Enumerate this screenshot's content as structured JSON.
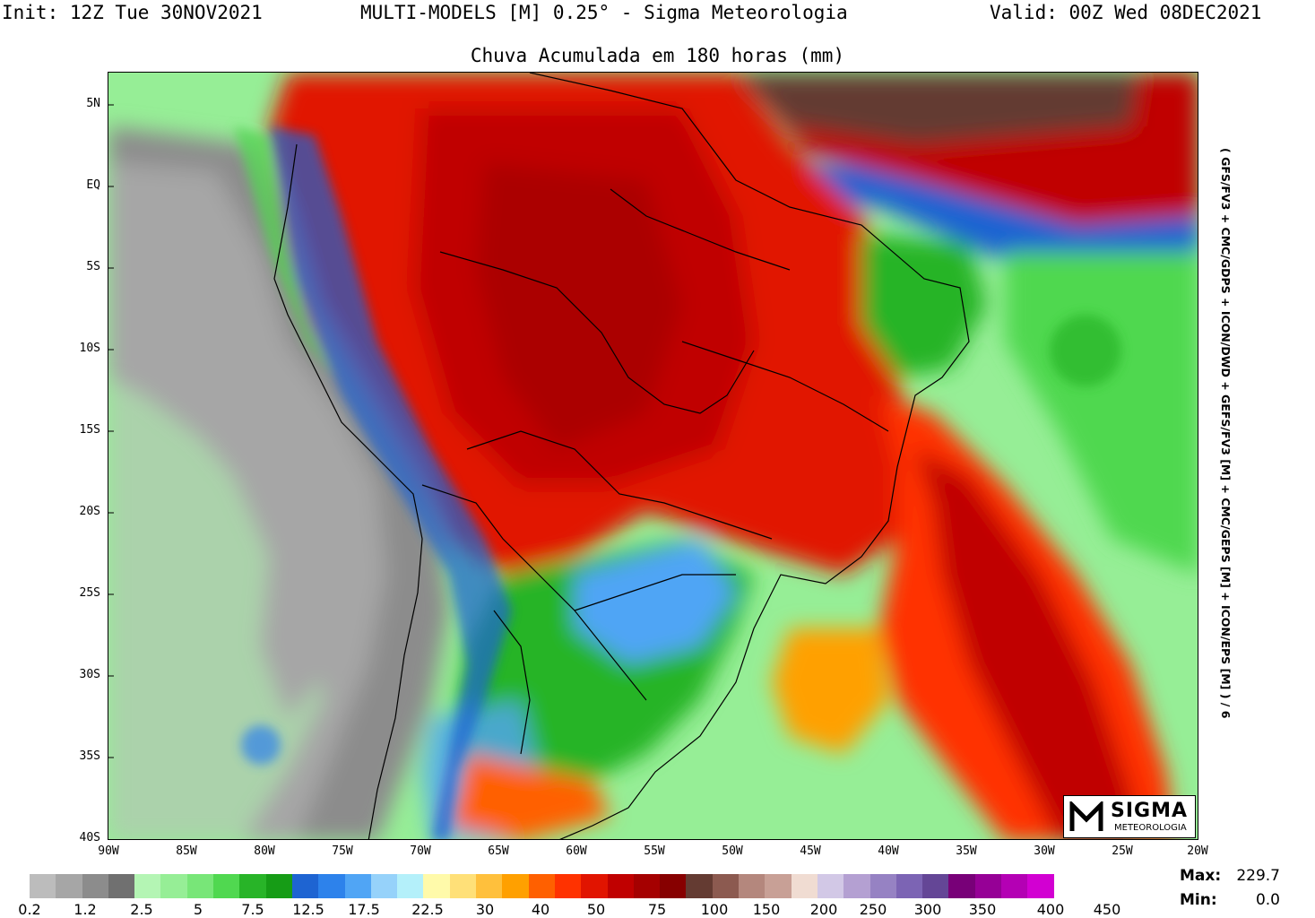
{
  "header": {
    "init": "Init: 12Z Tue 30NOV2021",
    "model": "MULTI-MODELS [M] 0.25° - Sigma Meteorologia",
    "valid": "Valid: 00Z Wed 08DEC2021"
  },
  "subtitle": "Chuva Acumulada em 180 horas (mm)",
  "side_text": "( GFS/FV3 + CMC/GDPS + ICON/DWD + GEFS/FV3 [M] + CMC/GEPS [M] + ICON/EPS [M] ) / 6",
  "lat_labels": [
    "5N",
    "EQ",
    "5S",
    "10S",
    "15S",
    "20S",
    "25S",
    "30S",
    "35S",
    "40S"
  ],
  "lon_labels": [
    "90W",
    "85W",
    "80W",
    "75W",
    "70W",
    "65W",
    "60W",
    "55W",
    "50W",
    "45W",
    "40W",
    "35W",
    "30W",
    "25W",
    "20W"
  ],
  "logo": {
    "title": "SIGMA",
    "subtitle": "METEOROLOGIA"
  },
  "colorbar": {
    "colors": [
      "#bcbcbc",
      "#a6a6a6",
      "#8c8c8c",
      "#707070",
      "#b4f5b4",
      "#96ee96",
      "#78e678",
      "#50d850",
      "#28b428",
      "#169c16",
      "#1e64d2",
      "#2d82eb",
      "#50a5f5",
      "#96d2fa",
      "#b4f0fa",
      "#fffaaa",
      "#ffe078",
      "#ffc03c",
      "#ffa000",
      "#ff6000",
      "#ff3200",
      "#e11400",
      "#c00000",
      "#a50000",
      "#870000",
      "#643b32",
      "#8c5a50",
      "#b4877d",
      "#c8a096",
      "#f0dcd2",
      "#d2c8e6",
      "#b4a0d2",
      "#9682c3",
      "#7c64b4",
      "#644696",
      "#780078",
      "#960096",
      "#b400b4",
      "#d200d2"
    ],
    "labels": [
      "0.2",
      "1.2",
      "2.5",
      "5",
      "7.5",
      "12.5",
      "17.5",
      "22.5",
      "30",
      "40",
      "50",
      "75",
      "100",
      "150",
      "200",
      "250",
      "300",
      "350",
      "400",
      "450"
    ]
  },
  "stats": {
    "max_label": "Max:",
    "max_value": "229.7",
    "min_label": "Min:",
    "min_value": "0.0"
  }
}
